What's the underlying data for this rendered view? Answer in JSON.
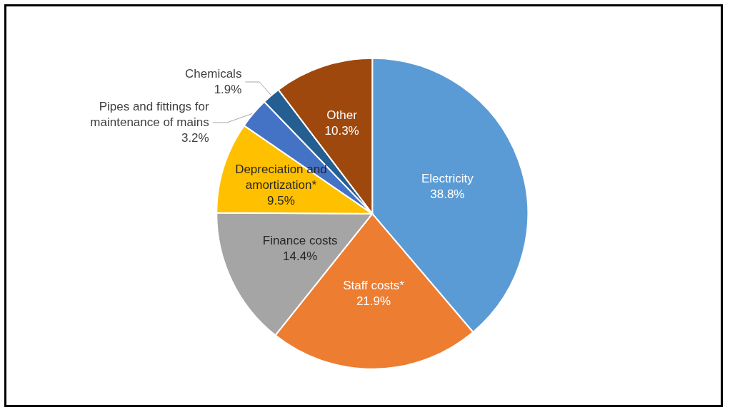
{
  "chart_data": {
    "type": "pie",
    "categories": [
      "Electricity",
      "Staff costs*",
      "Finance costs",
      "Depreciation and amortization*",
      "Pipes and fittings for maintenance of mains",
      "Chemicals",
      "Other"
    ],
    "values": [
      38.8,
      21.9,
      14.4,
      9.5,
      3.2,
      1.9,
      10.3
    ],
    "colors": [
      "#5b9bd5",
      "#ed7d31",
      "#a5a5a5",
      "#ffc000",
      "#4472c4",
      "#255e91",
      "#9e480e"
    ],
    "value_labels": [
      "38.8%",
      "21.9%",
      "14.4%",
      "9.5%",
      "3.2%",
      "1.9%",
      "10.3%"
    ],
    "legend": false
  }
}
